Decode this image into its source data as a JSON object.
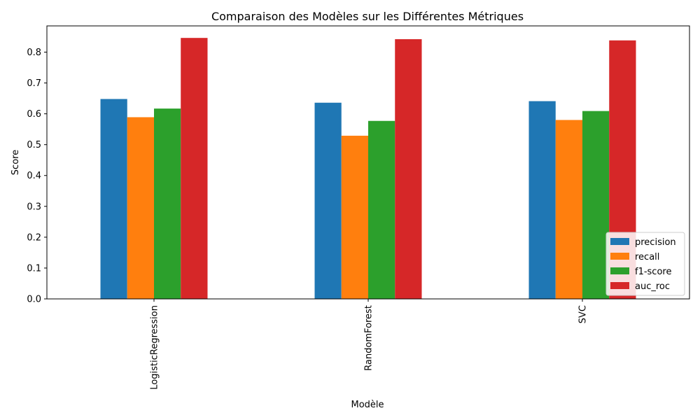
{
  "chart_data": {
    "type": "bar",
    "title": "Comparaison des Modèles sur les Différentes Métriques",
    "xlabel": "Modèle",
    "ylabel": "Score",
    "ylim": [
      0,
      0.885
    ],
    "yticks": [
      0.0,
      0.1,
      0.2,
      0.3,
      0.4,
      0.5,
      0.6,
      0.7,
      0.8
    ],
    "ytick_labels": [
      "0.0",
      "0.1",
      "0.2",
      "0.3",
      "0.4",
      "0.5",
      "0.6",
      "0.7",
      "0.8"
    ],
    "categories": [
      "LogisticRegression",
      "RandomForest",
      "SVC"
    ],
    "series": [
      {
        "name": "precision",
        "color": "#1f77b4",
        "values": [
          0.648,
          0.636,
          0.641
        ]
      },
      {
        "name": "recall",
        "color": "#ff7f0e",
        "values": [
          0.589,
          0.529,
          0.58
        ]
      },
      {
        "name": "f1-score",
        "color": "#2ca02c",
        "values": [
          0.617,
          0.577,
          0.609
        ]
      },
      {
        "name": "auc_roc",
        "color": "#d62728",
        "values": [
          0.846,
          0.842,
          0.838
        ]
      }
    ],
    "legend_position": "lower-right",
    "grid": false
  }
}
